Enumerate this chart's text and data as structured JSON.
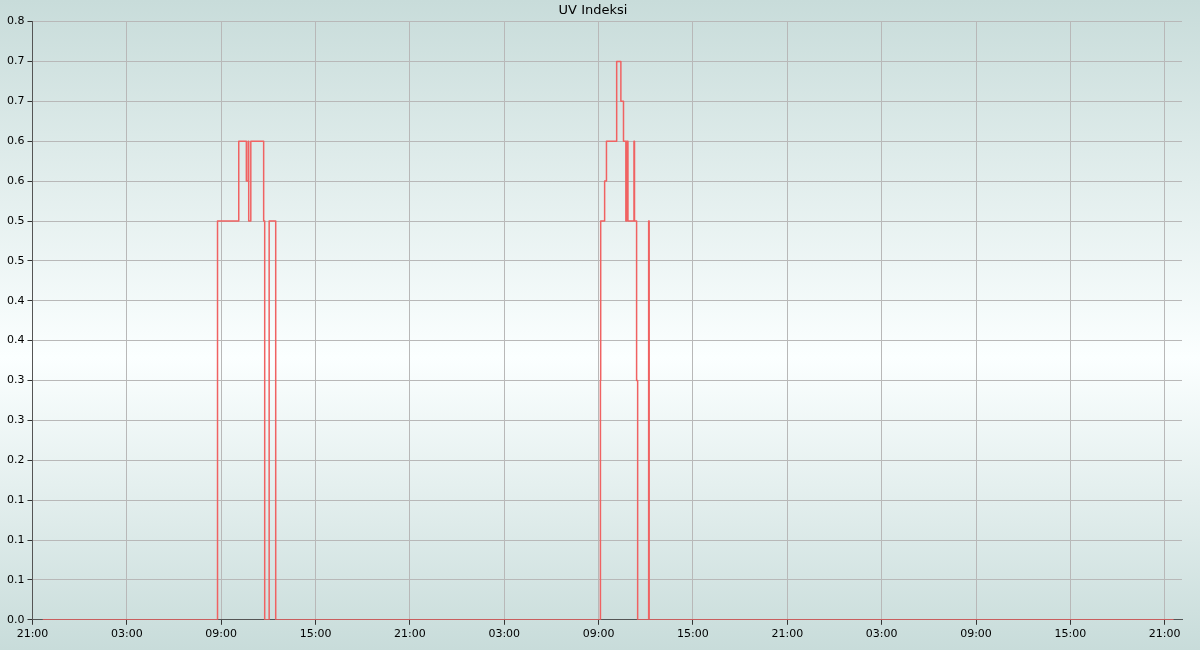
{
  "chart_data": {
    "type": "step",
    "title": "UV Indeksi",
    "x": [
      "--01-01T21:39",
      "--01-02T08:46",
      "--01-02T10:07",
      "--01-02T10:36",
      "--01-02T10:43",
      "--01-02T10:45",
      "--01-02T10:53",
      "--01-02T11:42",
      "--01-02T11:46",
      "--01-02T12:03",
      "--01-02T12:28",
      "--01-03T09:07",
      "--01-03T09:08",
      "--01-03T09:23",
      "--01-03T09:30",
      "--01-03T10:09",
      "--01-03T10:25",
      "--01-03T10:35",
      "--01-03T10:44",
      "--01-03T10:47",
      "--01-03T10:52",
      "--01-03T11:15",
      "--01-03T11:17",
      "--01-03T11:25",
      "--01-03T11:29",
      "--01-03T12:11",
      "--01-03T12:13",
      "--01-04T21:34"
    ],
    "series": [
      {
        "color": "#f06262",
        "values": [
          0,
          0.5,
          0.6,
          0.55,
          0.6,
          0.5,
          0.6,
          0.5,
          0,
          0.5,
          0,
          0.3,
          0.5,
          0.55,
          0.6,
          0.7,
          0.65,
          0.6,
          0.5,
          0.6,
          0.5,
          0.6,
          0.5,
          0.3,
          0,
          0.5,
          0,
          0
        ]
      }
    ],
    "xlim": [
      "--01-01T21:00",
      "--01-04T22:06"
    ],
    "xticks": [
      {
        "value": "--01-01T21:00",
        "label": "21:00"
      },
      {
        "value": "--01-02T03:00",
        "label": "03:00"
      },
      {
        "value": "--01-02T09:00",
        "label": "09:00"
      },
      {
        "value": "--01-02T15:00",
        "label": "15:00"
      },
      {
        "value": "--01-02T21:00",
        "label": "21:00"
      },
      {
        "value": "--01-03T03:00",
        "label": "03:00"
      },
      {
        "value": "--01-03T09:00",
        "label": "09:00"
      },
      {
        "value": "--01-03T15:00",
        "label": "15:00"
      },
      {
        "value": "--01-03T21:00",
        "label": "21:00"
      },
      {
        "value": "--01-04T03:00",
        "label": "03:00"
      },
      {
        "value": "--01-04T09:00",
        "label": "09:00"
      },
      {
        "value": "--01-04T15:00",
        "label": "15:00"
      },
      {
        "value": "--01-04T21:00",
        "label": "21:00"
      }
    ],
    "ylim": [
      0,
      0.75
    ],
    "yticks": [
      {
        "value": 0,
        "label": "0.0"
      },
      {
        "value": 0.05,
        "label": "0.1"
      },
      {
        "value": 0.1,
        "label": "0.1"
      },
      {
        "value": 0.15,
        "label": "0.1"
      },
      {
        "value": 0.2,
        "label": "0.2"
      },
      {
        "value": 0.25,
        "label": "0.3"
      },
      {
        "value": 0.3,
        "label": "0.3"
      },
      {
        "value": 0.35,
        "label": "0.4"
      },
      {
        "value": 0.4,
        "label": "0.4"
      },
      {
        "value": 0.45,
        "label": "0.5"
      },
      {
        "value": 0.5,
        "label": "0.5"
      },
      {
        "value": 0.55,
        "label": "0.6"
      },
      {
        "value": 0.6,
        "label": "0.6"
      },
      {
        "value": 0.65,
        "label": "0.7"
      },
      {
        "value": 0.7,
        "label": "0.7"
      },
      {
        "value": 0.75,
        "label": "0.8"
      }
    ],
    "grid": true,
    "legend": false,
    "marker": "none",
    "line_style": "solid"
  }
}
